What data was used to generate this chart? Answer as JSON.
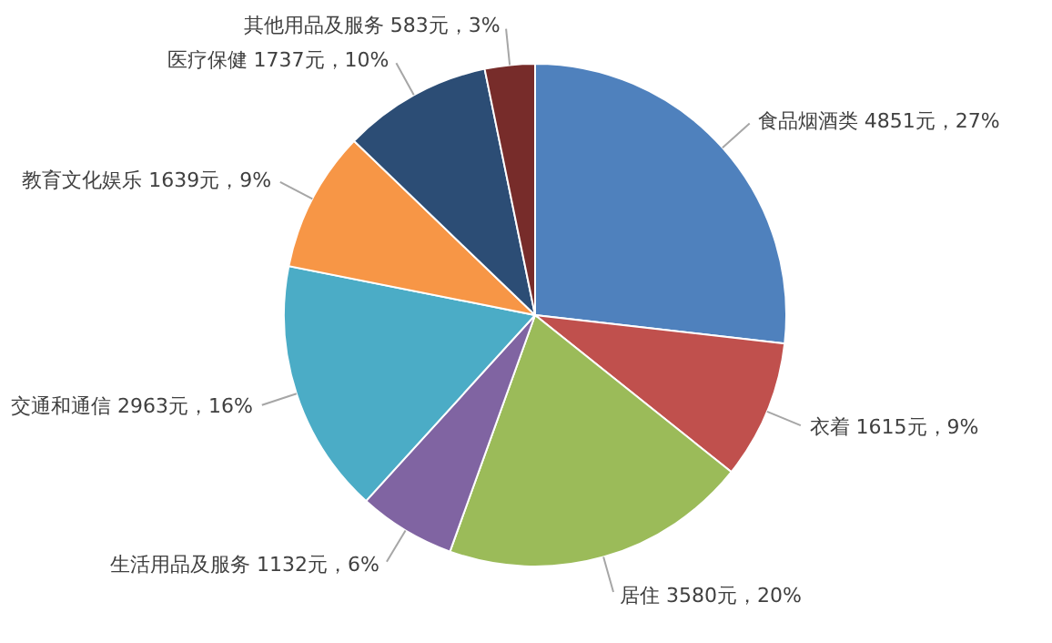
{
  "chart_data": {
    "type": "pie",
    "categories": [
      "食品烟酒类",
      "衣着",
      "居住",
      "生活用品及服务",
      "交通和通信",
      "教育文化娱乐",
      "医疗保健",
      "其他用品及服务"
    ],
    "values": [
      4851,
      1615,
      3580,
      1132,
      2963,
      1639,
      1737,
      583
    ],
    "value_labels": [
      "4851元，27%",
      "1615元，9%",
      "3580元，20%",
      "1132元，6%",
      "2963元，16%",
      "1639元，9%",
      "1737元，10%",
      "583元，3%"
    ],
    "colors": [
      "#4f81bd",
      "#c0504d",
      "#9bbb59",
      "#8064a2",
      "#4bacc6",
      "#f79646",
      "#2c4d75",
      "#772c2a"
    ],
    "legend": false
  }
}
